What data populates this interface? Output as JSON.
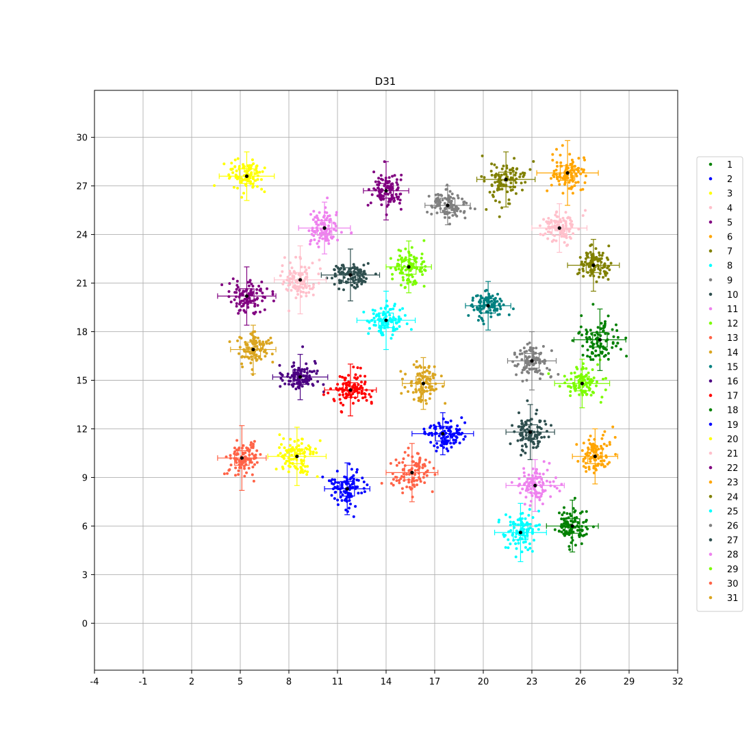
{
  "chart_data": {
    "type": "scatter",
    "title": "D31",
    "xlabel": "",
    "ylabel": "",
    "xlim": [
      -4,
      32
    ],
    "ylim": [
      -2.9,
      32.9
    ],
    "xticks": [
      "-4",
      "-1",
      "2",
      "5",
      "8",
      "11",
      "14",
      "17",
      "20",
      "23",
      "26",
      "29",
      "32"
    ],
    "yticks": [
      "0",
      "3",
      "6",
      "9",
      "12",
      "15",
      "18",
      "21",
      "24",
      "27",
      "30"
    ],
    "grid": true,
    "legend_position": "right",
    "series": [
      {
        "name": "1",
        "color": "#008000",
        "center": [
          25.5,
          6.0
        ],
        "spread": [
          0.5,
          0.5
        ],
        "error": [
          1.6,
          1.6
        ]
      },
      {
        "name": "2",
        "color": "#0000ff",
        "center": [
          11.6,
          8.3
        ],
        "spread": [
          0.5,
          0.55
        ],
        "error": [
          1.4,
          1.6
        ]
      },
      {
        "name": "3",
        "color": "#ffff00",
        "center": [
          5.4,
          27.6
        ],
        "spread": [
          0.55,
          0.5
        ],
        "error": [
          1.7,
          1.5
        ]
      },
      {
        "name": "4",
        "color": "#ffc0cb",
        "center": [
          24.7,
          24.4
        ],
        "spread": [
          0.55,
          0.45
        ],
        "error": [
          1.7,
          1.5
        ]
      },
      {
        "name": "5",
        "color": "#800080",
        "center": [
          14.0,
          26.7
        ],
        "spread": [
          0.5,
          0.6
        ],
        "error": [
          1.4,
          1.8
        ]
      },
      {
        "name": "6",
        "color": "#ffa500",
        "center": [
          25.2,
          27.8
        ],
        "spread": [
          0.55,
          0.6
        ],
        "error": [
          1.9,
          2.0
        ]
      },
      {
        "name": "7",
        "color": "#808000",
        "center": [
          26.8,
          22.1
        ],
        "spread": [
          0.5,
          0.55
        ],
        "error": [
          1.6,
          1.6
        ]
      },
      {
        "name": "8",
        "color": "#00ffff",
        "center": [
          14.0,
          18.7
        ],
        "spread": [
          0.6,
          0.5
        ],
        "error": [
          1.8,
          1.8
        ]
      },
      {
        "name": "9",
        "color": "#808080",
        "center": [
          17.8,
          25.8
        ],
        "spread": [
          0.6,
          0.45
        ],
        "error": [
          1.4,
          1.2
        ]
      },
      {
        "name": "10",
        "color": "#2f4f4f",
        "center": [
          11.8,
          21.5
        ],
        "spread": [
          0.6,
          0.45
        ],
        "error": [
          1.8,
          1.6
        ]
      },
      {
        "name": "11",
        "color": "#ee82ee",
        "center": [
          10.2,
          24.4
        ],
        "spread": [
          0.5,
          0.55
        ],
        "error": [
          1.6,
          1.6
        ]
      },
      {
        "name": "12",
        "color": "#7cfc00",
        "center": [
          15.4,
          22.0
        ],
        "spread": [
          0.5,
          0.55
        ],
        "error": [
          1.4,
          1.6
        ]
      },
      {
        "name": "13",
        "color": "#ff6347",
        "center": [
          15.6,
          9.3
        ],
        "spread": [
          0.6,
          0.6
        ],
        "error": [
          1.6,
          1.8
        ]
      },
      {
        "name": "14",
        "color": "#daa520",
        "center": [
          5.8,
          16.9
        ],
        "spread": [
          0.5,
          0.55
        ],
        "error": [
          1.4,
          1.5
        ]
      },
      {
        "name": "15",
        "color": "#008080",
        "center": [
          20.3,
          19.6
        ],
        "spread": [
          0.5,
          0.45
        ],
        "error": [
          1.4,
          1.5
        ]
      },
      {
        "name": "16",
        "color": "#4b0082",
        "center": [
          8.7,
          15.2
        ],
        "spread": [
          0.55,
          0.45
        ],
        "error": [
          1.7,
          1.4
        ]
      },
      {
        "name": "17",
        "color": "#ff0000",
        "center": [
          11.8,
          14.4
        ],
        "spread": [
          0.55,
          0.55
        ],
        "error": [
          1.6,
          1.6
        ]
      },
      {
        "name": "18",
        "color": "#008000",
        "center": [
          27.2,
          17.5
        ],
        "spread": [
          0.55,
          0.7
        ],
        "error": [
          1.6,
          1.9
        ]
      },
      {
        "name": "19",
        "color": "#0000ff",
        "center": [
          17.5,
          11.7
        ],
        "spread": [
          0.6,
          0.5
        ],
        "error": [
          1.9,
          1.3
        ]
      },
      {
        "name": "20",
        "color": "#ffff00",
        "center": [
          8.5,
          10.3
        ],
        "spread": [
          0.6,
          0.55
        ],
        "error": [
          1.8,
          1.8
        ]
      },
      {
        "name": "21",
        "color": "#ffc0cb",
        "center": [
          8.7,
          21.2
        ],
        "spread": [
          0.6,
          0.6
        ],
        "error": [
          1.6,
          2.1
        ]
      },
      {
        "name": "22",
        "color": "#800080",
        "center": [
          5.4,
          20.2
        ],
        "spread": [
          0.6,
          0.5
        ],
        "error": [
          1.8,
          1.8
        ]
      },
      {
        "name": "23",
        "color": "#ffa500",
        "center": [
          26.9,
          10.3
        ],
        "spread": [
          0.45,
          0.6
        ],
        "error": [
          1.4,
          1.7
        ]
      },
      {
        "name": "24",
        "color": "#808000",
        "center": [
          21.4,
          27.4
        ],
        "spread": [
          0.6,
          0.6
        ],
        "error": [
          1.8,
          1.7
        ]
      },
      {
        "name": "25",
        "color": "#00ffff",
        "center": [
          22.3,
          5.6
        ],
        "spread": [
          0.55,
          0.55
        ],
        "error": [
          1.6,
          1.8
        ]
      },
      {
        "name": "26",
        "color": "#808080",
        "center": [
          23.0,
          16.2
        ],
        "spread": [
          0.5,
          0.6
        ],
        "error": [
          1.5,
          1.8
        ]
      },
      {
        "name": "27",
        "color": "#2f4f4f",
        "center": [
          22.9,
          11.8
        ],
        "spread": [
          0.5,
          0.6
        ],
        "error": [
          1.5,
          1.7
        ]
      },
      {
        "name": "28",
        "color": "#ee82ee",
        "center": [
          23.2,
          8.5
        ],
        "spread": [
          0.6,
          0.55
        ],
        "error": [
          1.8,
          1.6
        ]
      },
      {
        "name": "29",
        "color": "#7cfc00",
        "center": [
          26.1,
          14.8
        ],
        "spread": [
          0.55,
          0.5
        ],
        "error": [
          1.7,
          1.5
        ]
      },
      {
        "name": "30",
        "color": "#ff6347",
        "center": [
          5.1,
          10.2
        ],
        "spread": [
          0.5,
          0.6
        ],
        "error": [
          1.5,
          2.0
        ]
      },
      {
        "name": "31",
        "color": "#daa520",
        "center": [
          16.3,
          14.8
        ],
        "spread": [
          0.45,
          0.55
        ],
        "error": [
          1.3,
          1.6
        ]
      }
    ]
  }
}
